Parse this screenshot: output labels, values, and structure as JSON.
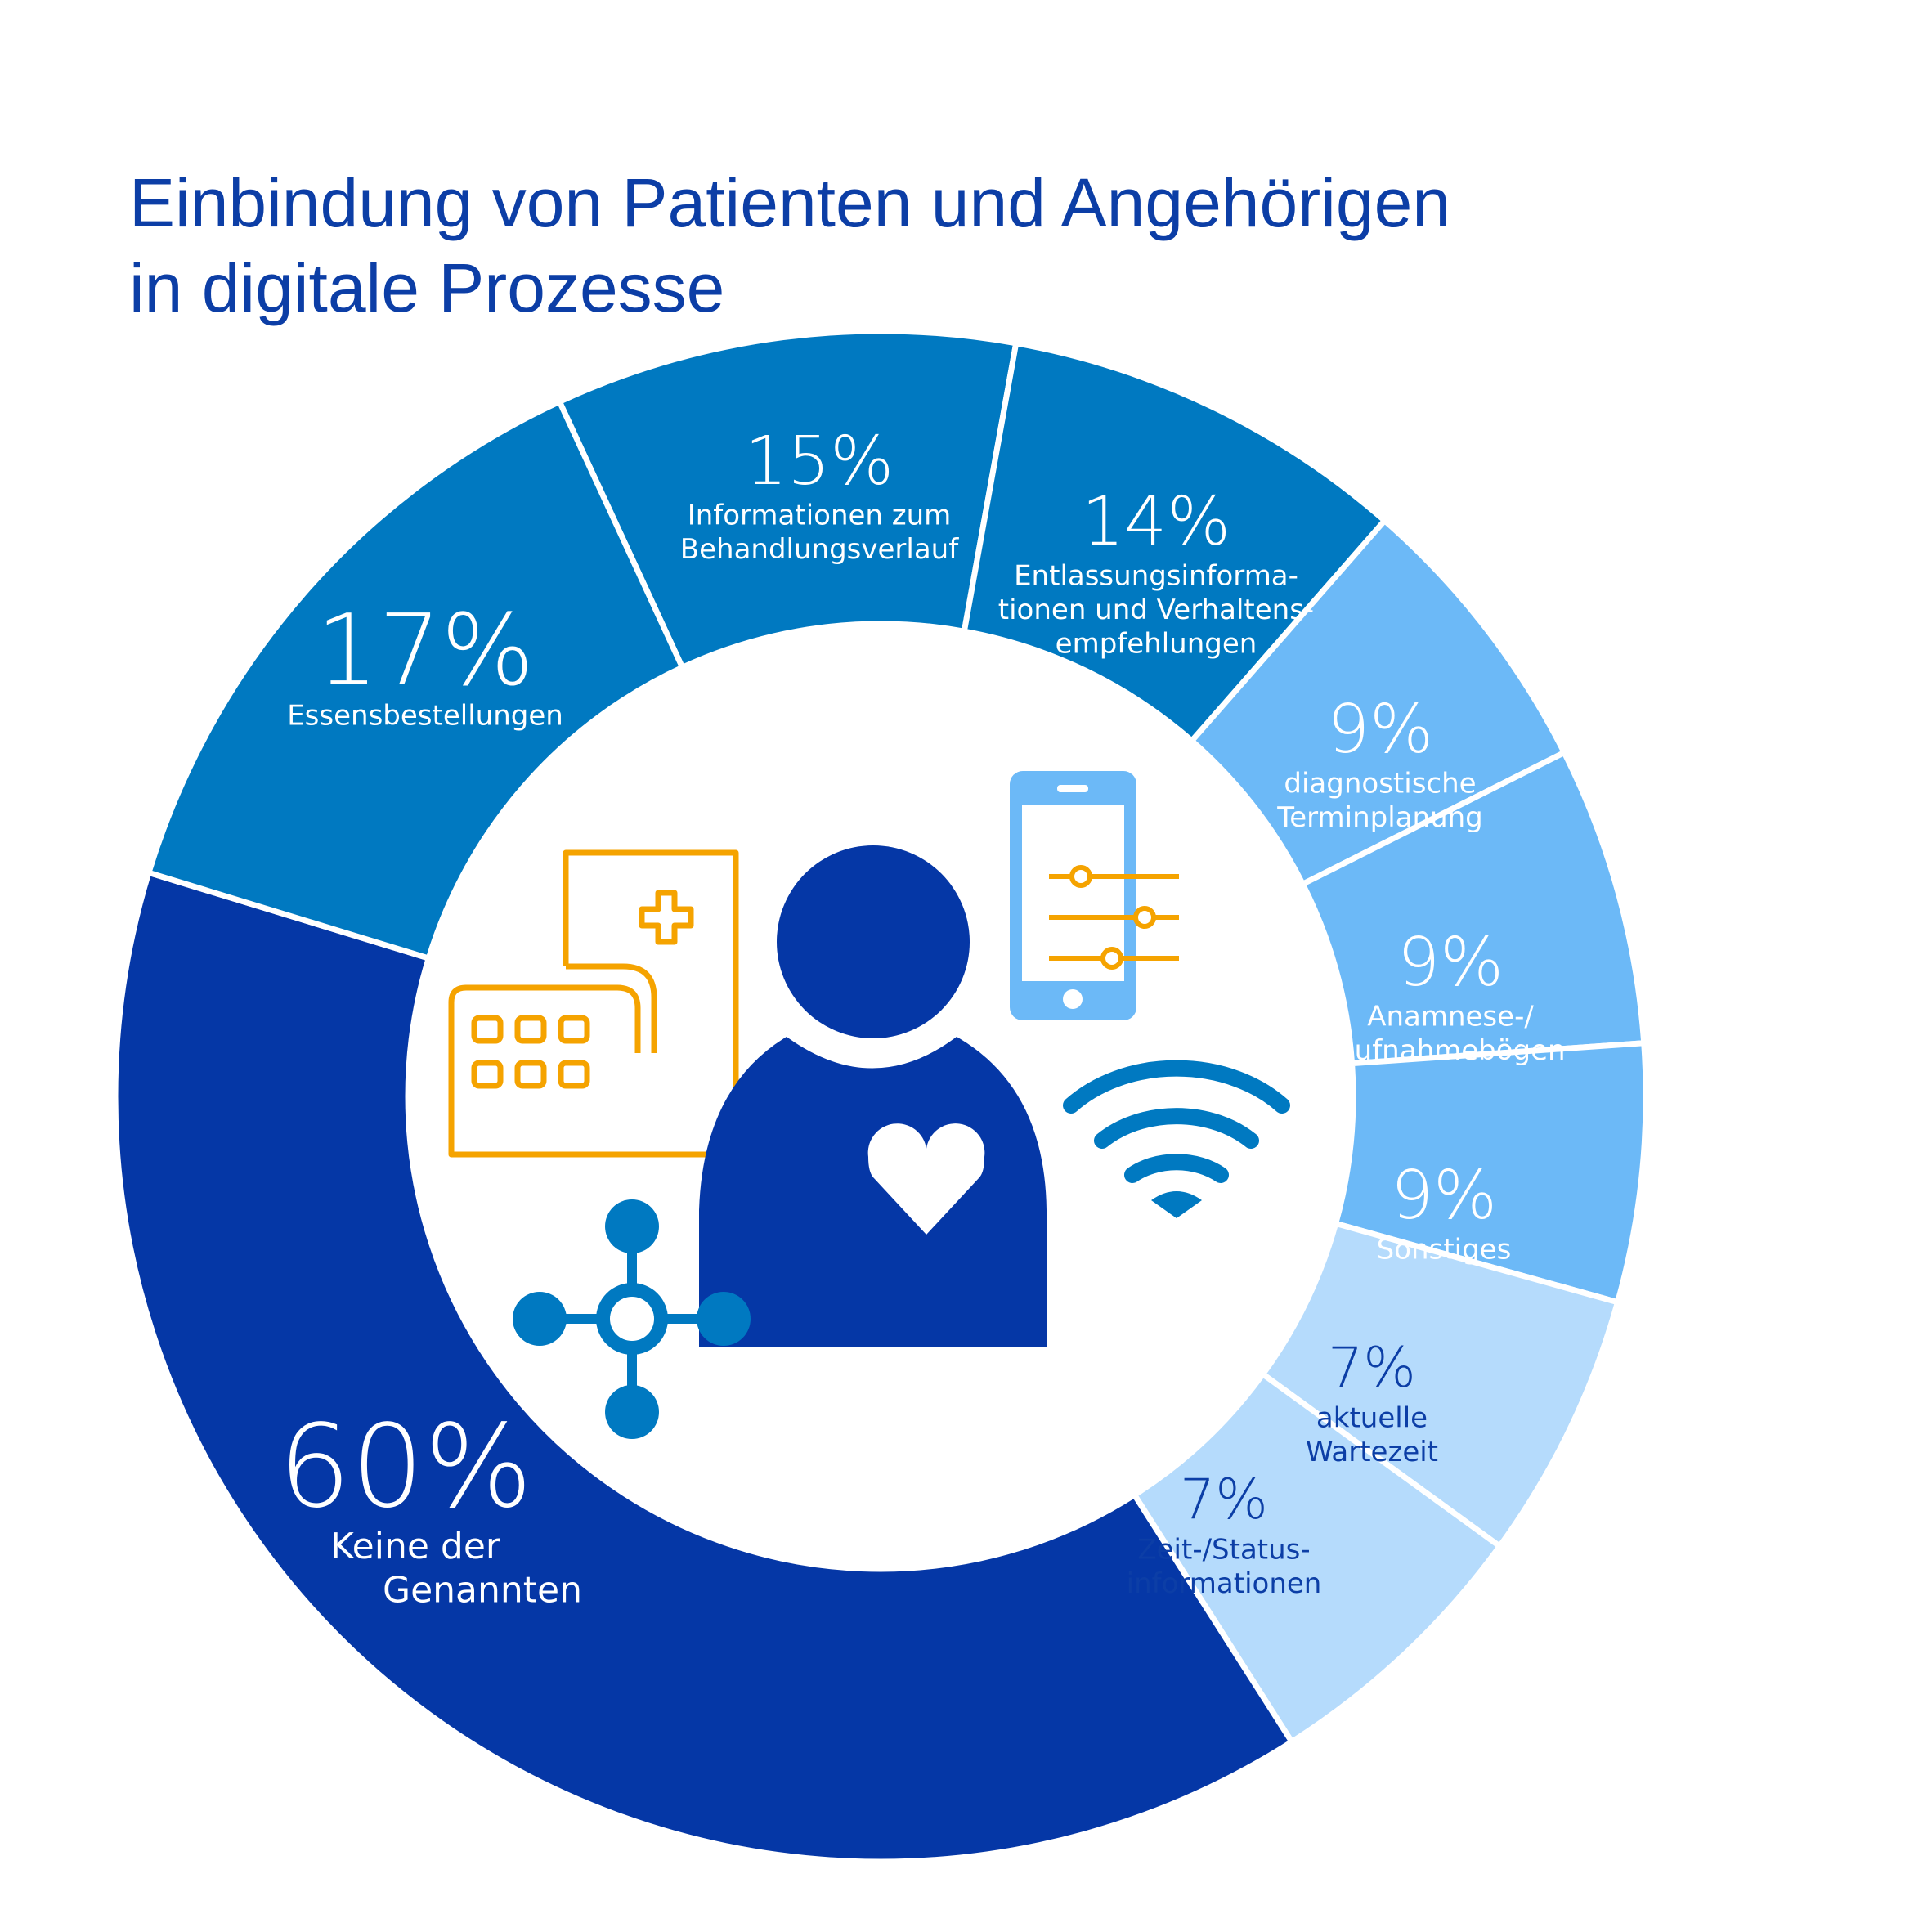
{
  "title": {
    "line1": "Einbindung von Patienten und Angehörigen",
    "line2": "in digitale Prozesse"
  },
  "chart_data": {
    "type": "pie",
    "title": "Einbindung von Patienten und Angehörigen in digitale Prozesse",
    "unit": "%",
    "slices": [
      {
        "value": 15,
        "percent_label": "15%",
        "label_lines": [
          "Informationen zum",
          "Behandlungsverlauf"
        ],
        "color": "#0079c1"
      },
      {
        "value": 14,
        "percent_label": "14%",
        "label_lines": [
          "Entlassungsinforma-",
          "tionen und Verhaltens-",
          "empfehlungen"
        ],
        "color": "#0079c1"
      },
      {
        "value": 9,
        "percent_label": "9%",
        "label_lines": [
          "diagnostische",
          "Terminplanung"
        ],
        "color": "#6cb9f7"
      },
      {
        "value": 9,
        "percent_label": "9%",
        "label_lines": [
          "Anamnese-/",
          "Aufnahmebögen"
        ],
        "color": "#6cb9f7"
      },
      {
        "value": 9,
        "percent_label": "9%",
        "label_lines": [
          "Sonstiges"
        ],
        "color": "#6cb9f7"
      },
      {
        "value": 7,
        "percent_label": "7%",
        "label_lines": [
          "aktuelle",
          "Wartezeit"
        ],
        "color": "#b5dbfc"
      },
      {
        "value": 7,
        "percent_label": "7%",
        "label_lines": [
          "Zeit-/Status-",
          "informationen"
        ],
        "color": "#b5dbfc"
      },
      {
        "value": 60,
        "percent_label": "60%",
        "label_lines": [
          "Keine der",
          "Genannten"
        ],
        "color": "#0537a6"
      },
      {
        "value": 17,
        "percent_label": "17%",
        "label_lines": [
          "Essensbestellungen"
        ],
        "color": "#0079c1"
      }
    ]
  },
  "colors": {
    "title": "#0c3ea6",
    "dark_blue": "#0537a6",
    "mid_blue": "#0079c1",
    "light_blue": "#6cb9f7",
    "pale_blue": "#b5dbfc",
    "orange": "#f5a300",
    "pale_label_text": "#0c3ea6"
  },
  "icons": [
    "patient-heart-icon",
    "medical-calendar-icon",
    "smartphone-settings-icon",
    "wifi-icon",
    "network-hub-icon"
  ]
}
